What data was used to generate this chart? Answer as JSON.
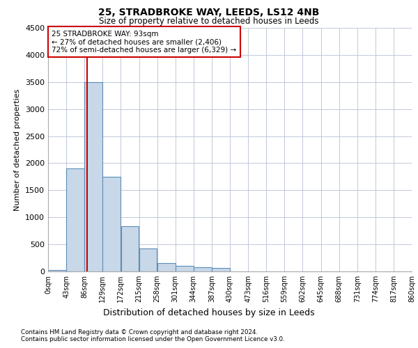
{
  "title_line1": "25, STRADBROKE WAY, LEEDS, LS12 4NB",
  "title_line2": "Size of property relative to detached houses in Leeds",
  "xlabel": "Distribution of detached houses by size in Leeds",
  "ylabel": "Number of detached properties",
  "bin_edges": [
    0,
    43,
    86,
    129,
    172,
    215,
    258,
    301,
    344,
    387,
    430,
    473,
    516,
    559,
    602,
    645,
    688,
    731,
    774,
    817,
    860
  ],
  "bin_counts": [
    30,
    1900,
    3500,
    1750,
    830,
    430,
    155,
    100,
    75,
    60,
    0,
    0,
    0,
    0,
    0,
    0,
    0,
    0,
    0,
    0
  ],
  "property_sqm": 93,
  "bar_color": "#c8d8e8",
  "bar_edge_color": "#5b8db8",
  "line_color": "#cc0000",
  "annotation_line1": "25 STRADBROKE WAY: 93sqm",
  "annotation_line2": "← 27% of detached houses are smaller (2,406)",
  "annotation_line3": "72% of semi-detached houses are larger (6,329) →",
  "annotation_box_color": "#ffffff",
  "annotation_box_edge": "#cc0000",
  "ylim": [
    0,
    4500
  ],
  "yticks": [
    0,
    500,
    1000,
    1500,
    2000,
    2500,
    3000,
    3500,
    4000,
    4500
  ],
  "footnote1": "Contains HM Land Registry data © Crown copyright and database right 2024.",
  "footnote2": "Contains public sector information licensed under the Open Government Licence v3.0.",
  "bg_color": "#ffffff",
  "grid_color": "#c0c8d8",
  "tick_labels": [
    "0sqm",
    "43sqm",
    "86sqm",
    "129sqm",
    "172sqm",
    "215sqm",
    "258sqm",
    "301sqm",
    "344sqm",
    "387sqm",
    "430sqm",
    "473sqm",
    "516sqm",
    "559sqm",
    "602sqm",
    "645sqm",
    "688sqm",
    "731sqm",
    "774sqm",
    "817sqm",
    "860sqm"
  ]
}
